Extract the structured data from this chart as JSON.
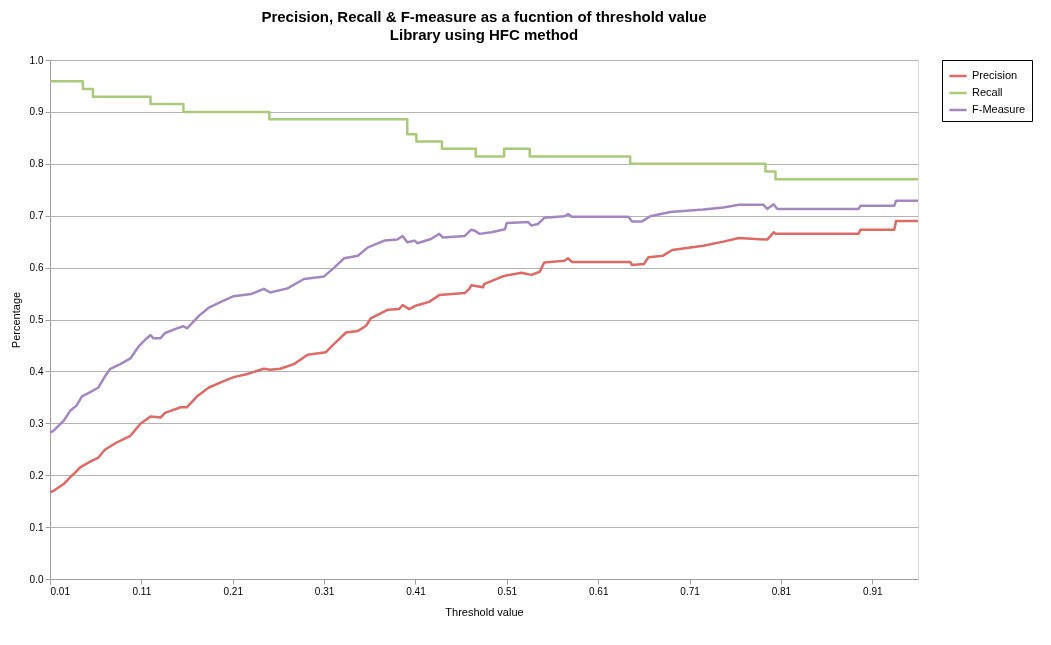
{
  "chart_data": {
    "type": "line",
    "title": "Precision, Recall & F-measure as a fucntion of threshold value",
    "subtitle": "Library using HFC method",
    "xlabel": "Threshold value",
    "ylabel": "Percentage",
    "xlim": [
      0.01,
      0.96
    ],
    "xticks": [
      0.01,
      0.11,
      0.21,
      0.31,
      0.41,
      0.51,
      0.61,
      0.71,
      0.81,
      0.91
    ],
    "ylim": [
      0,
      1
    ],
    "yticks": [
      {
        "value": 0,
        "label": "0.0"
      },
      0.1,
      0.2,
      0.3,
      0.4,
      0.5,
      0.6,
      0.7,
      0.8,
      0.9,
      {
        "value": 1,
        "label": "1.0"
      }
    ],
    "grid": "y",
    "legend": "right",
    "marker": "none",
    "line_style": "solid",
    "series": [
      {
        "name": "Precision",
        "color": "#dd6a65",
        "x": [
          0.01,
          0.014,
          0.025,
          0.032,
          0.037,
          0.043,
          0.054,
          0.063,
          0.07,
          0.083,
          0.098,
          0.109,
          0.12,
          0.131,
          0.136,
          0.153,
          0.16,
          0.171,
          0.184,
          0.197,
          0.211,
          0.226,
          0.244,
          0.251,
          0.262,
          0.277,
          0.292,
          0.312,
          0.321,
          0.334,
          0.347,
          0.356,
          0.361,
          0.38,
          0.392,
          0.396,
          0.403,
          0.411,
          0.425,
          0.436,
          0.464,
          0.469,
          0.471,
          0.484,
          0.485,
          0.507,
          0.526,
          0.537,
          0.546,
          0.551,
          0.573,
          0.577,
          0.581,
          0.645,
          0.647,
          0.66,
          0.665,
          0.681,
          0.691,
          0.725,
          0.747,
          0.764,
          0.795,
          0.802,
          0.804,
          0.895,
          0.897,
          0.934,
          0.936,
          0.96
        ],
        "values": [
          0.167,
          0.17,
          0.183,
          0.196,
          0.204,
          0.215,
          0.226,
          0.234,
          0.249,
          0.263,
          0.276,
          0.299,
          0.313,
          0.311,
          0.32,
          0.331,
          0.331,
          0.352,
          0.369,
          0.379,
          0.389,
          0.395,
          0.405,
          0.403,
          0.405,
          0.414,
          0.432,
          0.437,
          0.453,
          0.475,
          0.478,
          0.488,
          0.502,
          0.519,
          0.52,
          0.528,
          0.52,
          0.527,
          0.534,
          0.547,
          0.551,
          0.559,
          0.566,
          0.562,
          0.568,
          0.584,
          0.59,
          0.586,
          0.592,
          0.61,
          0.613,
          0.618,
          0.611,
          0.611,
          0.605,
          0.607,
          0.62,
          0.623,
          0.634,
          0.642,
          0.65,
          0.657,
          0.654,
          0.668,
          0.665,
          0.665,
          0.673,
          0.673,
          0.69,
          0.69
        ]
      },
      {
        "name": "Recall",
        "color": "#a9c97b",
        "x": [
          0.01,
          0.046,
          0.046,
          0.057,
          0.057,
          0.12,
          0.12,
          0.156,
          0.156,
          0.25,
          0.25,
          0.401,
          0.401,
          0.411,
          0.411,
          0.439,
          0.439,
          0.476,
          0.476,
          0.507,
          0.507,
          0.535,
          0.535,
          0.645,
          0.645,
          0.793,
          0.793,
          0.804,
          0.804,
          0.96
        ],
        "values": [
          0.959,
          0.959,
          0.944,
          0.944,
          0.929,
          0.929,
          0.915,
          0.915,
          0.9,
          0.9,
          0.886,
          0.886,
          0.857,
          0.857,
          0.843,
          0.843,
          0.829,
          0.829,
          0.814,
          0.814,
          0.829,
          0.829,
          0.814,
          0.814,
          0.8,
          0.8,
          0.785,
          0.785,
          0.77,
          0.77
        ]
      },
      {
        "name": "F-Measure",
        "color": "#a587c0",
        "x": [
          0.01,
          0.014,
          0.025,
          0.032,
          0.039,
          0.045,
          0.054,
          0.063,
          0.07,
          0.076,
          0.087,
          0.098,
          0.107,
          0.116,
          0.12,
          0.123,
          0.131,
          0.136,
          0.149,
          0.156,
          0.16,
          0.173,
          0.184,
          0.197,
          0.211,
          0.23,
          0.244,
          0.251,
          0.27,
          0.288,
          0.31,
          0.321,
          0.332,
          0.347,
          0.358,
          0.376,
          0.39,
          0.396,
          0.401,
          0.409,
          0.412,
          0.427,
          0.436,
          0.44,
          0.464,
          0.471,
          0.475,
          0.48,
          0.493,
          0.508,
          0.51,
          0.533,
          0.537,
          0.544,
          0.551,
          0.573,
          0.577,
          0.581,
          0.643,
          0.647,
          0.658,
          0.667,
          0.689,
          0.725,
          0.747,
          0.764,
          0.791,
          0.795,
          0.802,
          0.806,
          0.895,
          0.897,
          0.934,
          0.936,
          0.96
        ],
        "values": [
          0.282,
          0.286,
          0.305,
          0.324,
          0.334,
          0.352,
          0.36,
          0.369,
          0.39,
          0.405,
          0.414,
          0.425,
          0.448,
          0.464,
          0.47,
          0.464,
          0.464,
          0.474,
          0.483,
          0.487,
          0.483,
          0.507,
          0.523,
          0.534,
          0.545,
          0.549,
          0.559,
          0.552,
          0.56,
          0.578,
          0.583,
          0.6,
          0.618,
          0.623,
          0.639,
          0.652,
          0.654,
          0.661,
          0.649,
          0.652,
          0.647,
          0.655,
          0.665,
          0.658,
          0.661,
          0.673,
          0.671,
          0.665,
          0.668,
          0.674,
          0.686,
          0.688,
          0.681,
          0.684,
          0.696,
          0.699,
          0.703,
          0.698,
          0.698,
          0.689,
          0.689,
          0.699,
          0.707,
          0.712,
          0.716,
          0.721,
          0.721,
          0.713,
          0.722,
          0.713,
          0.713,
          0.719,
          0.719,
          0.729,
          0.729
        ]
      }
    ]
  }
}
